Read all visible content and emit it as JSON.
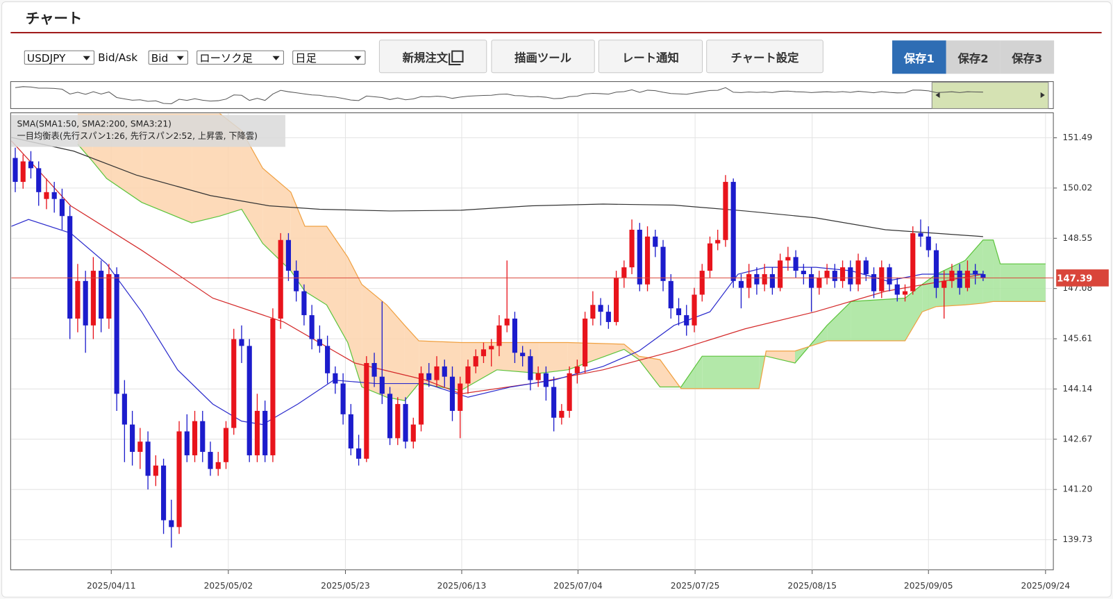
{
  "header": {
    "title": "チャート"
  },
  "toolbar": {
    "symbol": "USDJPY",
    "bid_ask_label": "Bid/Ask",
    "bid_ask": "Bid",
    "chart_kind": "ローソク足",
    "period": "日足",
    "buttons": [
      "新規注文",
      "描画ツール",
      "レート通知",
      "チャート設定"
    ],
    "saves": [
      "保存1",
      "保存2",
      "保存3"
    ]
  },
  "chart_data": {
    "type": "candlestick",
    "legend_lines": [
      "SMA(SMA1:50, SMA2:200, SMA3:21)",
      "一目均衡表(先行スパン1:26, 先行スパン2:52, 上昇雲, 下降雲)"
    ],
    "up_color": "#e8141c",
    "down_color": "#1c1ccc",
    "xlim": [
      0,
      133.5
    ],
    "ylim": [
      138.85,
      152.2
    ],
    "grid": true,
    "xticks": [
      {
        "value": 12.8,
        "label": "2025/04/11"
      },
      {
        "value": 27.8,
        "label": "2025/05/02"
      },
      {
        "value": 42.8,
        "label": "2025/05/23"
      },
      {
        "value": 57.7,
        "label": "2025/06/13"
      },
      {
        "value": 72.6,
        "label": "2025/07/04"
      },
      {
        "value": 87.6,
        "label": "2025/07/25"
      },
      {
        "value": 102.6,
        "label": "2025/08/15"
      },
      {
        "value": 117.5,
        "label": "2025/09/05"
      },
      {
        "value": 132.5,
        "label": "2025/09/24"
      }
    ],
    "yticks": [
      151.49,
      150.02,
      148.55,
      147.08,
      145.61,
      144.14,
      142.67,
      {
        "value": 141.2,
        "label": "141.20"
      },
      139.73
    ],
    "last": 147.39,
    "last_color": "#d9453a",
    "ohlc": [
      [
        150.9,
        151.2,
        149.9,
        150.2
      ],
      [
        150.2,
        151.0,
        150.0,
        150.8
      ],
      [
        150.8,
        151.1,
        150.3,
        150.6
      ],
      [
        150.6,
        150.8,
        149.5,
        149.9
      ],
      [
        149.7,
        150.3,
        149.4,
        149.9
      ],
      [
        149.9,
        150.2,
        149.3,
        149.7
      ],
      [
        149.7,
        150.0,
        148.8,
        149.2
      ],
      [
        149.2,
        149.5,
        145.6,
        146.2
      ],
      [
        146.2,
        147.8,
        145.8,
        147.3
      ],
      [
        147.3,
        147.6,
        145.2,
        146.0
      ],
      [
        146.0,
        148.0,
        145.6,
        147.6
      ],
      [
        147.6,
        147.9,
        145.8,
        146.2
      ],
      [
        146.2,
        147.8,
        145.9,
        147.5
      ],
      [
        147.5,
        147.7,
        143.5,
        144.0
      ],
      [
        144.0,
        144.4,
        142.0,
        143.1
      ],
      [
        143.1,
        143.5,
        141.9,
        142.3
      ],
      [
        142.3,
        143.0,
        141.8,
        142.6
      ],
      [
        142.6,
        142.9,
        141.2,
        141.6
      ],
      [
        141.6,
        142.2,
        141.3,
        141.9
      ],
      [
        141.9,
        142.1,
        139.9,
        140.3
      ],
      [
        140.3,
        140.9,
        139.5,
        140.1
      ],
      [
        140.1,
        143.2,
        139.9,
        142.9
      ],
      [
        142.9,
        143.4,
        142.0,
        142.2
      ],
      [
        142.2,
        143.5,
        142.0,
        143.2
      ],
      [
        143.2,
        143.5,
        142.0,
        142.3
      ],
      [
        142.3,
        142.6,
        141.6,
        141.8
      ],
      [
        141.8,
        142.3,
        141.6,
        142.0
      ],
      [
        142.0,
        143.2,
        141.8,
        143.0
      ],
      [
        143.0,
        145.9,
        142.8,
        145.6
      ],
      [
        145.6,
        146.0,
        144.9,
        145.4
      ],
      [
        145.4,
        145.6,
        142.0,
        142.2
      ],
      [
        142.2,
        144.0,
        142.0,
        143.5
      ],
      [
        143.5,
        143.8,
        142.0,
        142.2
      ],
      [
        142.2,
        146.5,
        142.0,
        146.2
      ],
      [
        146.2,
        148.7,
        145.9,
        148.5
      ],
      [
        148.5,
        148.7,
        147.3,
        147.6
      ],
      [
        147.6,
        147.9,
        146.7,
        147.0
      ],
      [
        147.0,
        147.2,
        146.0,
        146.3
      ],
      [
        146.3,
        146.6,
        145.3,
        145.6
      ],
      [
        145.6,
        146.0,
        145.2,
        145.4
      ],
      [
        145.4,
        145.7,
        144.3,
        144.6
      ],
      [
        144.6,
        144.8,
        144.0,
        144.3
      ],
      [
        144.3,
        144.6,
        143.1,
        143.4
      ],
      [
        143.4,
        143.7,
        142.2,
        142.4
      ],
      [
        142.4,
        142.8,
        141.9,
        142.1
      ],
      [
        142.1,
        145.1,
        142.0,
        144.9
      ],
      [
        144.9,
        145.2,
        144.2,
        144.5
      ],
      [
        144.5,
        146.7,
        143.7,
        144.0
      ],
      [
        144.0,
        144.2,
        142.5,
        142.7
      ],
      [
        142.7,
        143.9,
        142.5,
        143.7
      ],
      [
        143.7,
        143.9,
        142.4,
        142.6
      ],
      [
        142.6,
        143.3,
        142.4,
        143.1
      ],
      [
        143.1,
        144.8,
        142.9,
        144.6
      ],
      [
        144.6,
        144.9,
        144.2,
        144.4
      ],
      [
        144.4,
        145.1,
        144.2,
        144.8
      ],
      [
        144.8,
        145.0,
        144.2,
        144.5
      ],
      [
        144.5,
        144.8,
        143.2,
        143.5
      ],
      [
        143.5,
        144.5,
        142.7,
        144.3
      ],
      [
        144.3,
        145.0,
        144.0,
        144.8
      ],
      [
        144.8,
        145.3,
        144.6,
        145.1
      ],
      [
        145.1,
        145.5,
        144.9,
        145.3
      ],
      [
        145.3,
        145.6,
        144.8,
        145.4
      ],
      [
        145.4,
        146.3,
        145.1,
        146.0
      ],
      [
        146.0,
        147.9,
        145.8,
        146.2
      ],
      [
        146.2,
        146.4,
        144.9,
        145.2
      ],
      [
        145.2,
        145.4,
        144.8,
        145.1
      ],
      [
        145.1,
        145.3,
        144.1,
        144.4
      ],
      [
        144.4,
        144.8,
        144.2,
        144.6
      ],
      [
        144.6,
        144.8,
        143.8,
        144.2
      ],
      [
        144.2,
        144.5,
        142.9,
        143.3
      ],
      [
        143.3,
        143.7,
        143.1,
        143.5
      ],
      [
        143.5,
        144.8,
        143.3,
        144.6
      ],
      [
        144.6,
        145.0,
        144.3,
        144.8
      ],
      [
        144.8,
        146.4,
        144.6,
        146.2
      ],
      [
        146.2,
        147.0,
        146.0,
        146.6
      ],
      [
        146.6,
        146.8,
        146.0,
        146.4
      ],
      [
        146.4,
        146.6,
        145.9,
        146.1
      ],
      [
        146.1,
        147.6,
        146.0,
        147.4
      ],
      [
        147.4,
        147.9,
        147.1,
        147.7
      ],
      [
        147.7,
        149.1,
        147.5,
        148.8
      ],
      [
        148.8,
        149.0,
        147.0,
        147.2
      ],
      [
        147.2,
        148.9,
        147.0,
        148.6
      ],
      [
        148.6,
        148.8,
        148.0,
        148.3
      ],
      [
        148.3,
        148.5,
        147.0,
        147.3
      ],
      [
        147.3,
        147.5,
        146.2,
        146.5
      ],
      [
        146.5,
        146.8,
        146.0,
        146.3
      ],
      [
        146.3,
        146.6,
        145.7,
        146.0
      ],
      [
        146.0,
        147.1,
        145.8,
        146.9
      ],
      [
        146.9,
        147.8,
        146.7,
        147.6
      ],
      [
        147.6,
        148.6,
        147.4,
        148.4
      ],
      [
        148.4,
        148.8,
        148.2,
        148.5
      ],
      [
        148.5,
        150.4,
        148.3,
        150.2
      ],
      [
        150.2,
        150.3,
        147.1,
        147.3
      ],
      [
        147.3,
        147.5,
        146.5,
        147.1
      ],
      [
        147.1,
        147.8,
        146.8,
        147.5
      ],
      [
        147.5,
        147.7,
        146.9,
        147.2
      ],
      [
        147.2,
        147.8,
        147.0,
        147.5
      ],
      [
        147.5,
        147.7,
        146.9,
        147.1
      ],
      [
        147.1,
        148.1,
        147.0,
        147.9
      ],
      [
        147.9,
        148.3,
        147.6,
        148.0
      ],
      [
        148.0,
        148.2,
        147.4,
        147.6
      ],
      [
        147.6,
        147.8,
        147.2,
        147.5
      ],
      [
        147.5,
        147.7,
        146.4,
        147.1
      ],
      [
        147.1,
        147.6,
        146.9,
        147.4
      ],
      [
        147.4,
        147.8,
        147.2,
        147.6
      ],
      [
        147.6,
        147.8,
        147.1,
        147.3
      ],
      [
        147.3,
        147.9,
        147.1,
        147.7
      ],
      [
        147.7,
        147.9,
        147.0,
        147.2
      ],
      [
        147.2,
        148.1,
        147.0,
        147.9
      ],
      [
        147.9,
        148.0,
        147.3,
        147.5
      ],
      [
        147.5,
        147.7,
        146.8,
        147.0
      ],
      [
        147.0,
        147.9,
        146.8,
        147.7
      ],
      [
        147.7,
        147.8,
        147.0,
        147.2
      ],
      [
        147.2,
        147.4,
        146.7,
        146.9
      ],
      [
        146.9,
        147.2,
        146.7,
        147.0
      ],
      [
        147.0,
        148.9,
        146.9,
        148.7
      ],
      [
        148.7,
        149.1,
        148.3,
        148.6
      ],
      [
        148.6,
        148.9,
        148.0,
        148.2
      ],
      [
        148.2,
        148.4,
        146.8,
        147.1
      ],
      [
        147.1,
        147.6,
        146.2,
        147.3
      ],
      [
        147.3,
        147.8,
        147.1,
        147.6
      ],
      [
        147.6,
        147.8,
        146.9,
        147.1
      ],
      [
        147.1,
        147.9,
        147.0,
        147.6
      ],
      [
        147.6,
        147.8,
        147.2,
        147.5
      ],
      [
        147.5,
        147.6,
        147.3,
        147.39
      ]
    ],
    "sma": [
      {
        "color": "#d42a2a",
        "x": [
          0,
          7.6,
          16.7,
          25.8,
          34.9,
          44,
          53.1,
          57.6,
          66.7,
          75.8,
          84.9,
          94,
          103,
          112,
          124.5
        ],
        "values": [
          151.4,
          149.5,
          148.2,
          146.8,
          146.1,
          144.9,
          144.4,
          144.0,
          144.3,
          144.7,
          145.25,
          145.9,
          146.4,
          147.0,
          147.5
        ]
      },
      {
        "color": "#333333",
        "x": [
          0,
          8,
          16,
          25.5,
          33,
          39.5,
          48.5,
          57.6,
          66.7,
          75.8,
          84.9,
          94,
          103,
          112,
          124.5
        ],
        "values": [
          151.5,
          151.1,
          150.4,
          149.8,
          149.5,
          149.4,
          149.35,
          149.37,
          149.5,
          149.55,
          149.52,
          149.35,
          149.15,
          148.8,
          148.6
        ]
      },
      {
        "color": "#2a2acc",
        "x": [
          0,
          2.2,
          7.6,
          12.2,
          16.7,
          21.3,
          25.8,
          29.5,
          32.2,
          36.7,
          41.3,
          46.7,
          53.1,
          58.5,
          64,
          69.5,
          75.8,
          80.4,
          84.9,
          89.5,
          93.1,
          96.7,
          103.1,
          107.6,
          112.2,
          116.7,
          124.5
        ],
        "values": [
          148.9,
          149.1,
          148.7,
          147.8,
          146.4,
          144.7,
          143.7,
          143.2,
          143.1,
          143.7,
          144.4,
          144.3,
          144.3,
          143.9,
          144.2,
          144.4,
          144.8,
          145.25,
          146.0,
          146.4,
          147.5,
          147.7,
          147.7,
          147.6,
          147.3,
          147.5,
          147.5
        ]
      }
    ],
    "ichimoku": {
      "span1_color": "#5cc43c",
      "span2_color": "#f0a040",
      "bull_fill": "#a6e49a",
      "bear_fill": "#fdd3ad",
      "x": [
        8.5,
        10.4,
        12.2,
        16.7,
        23.1,
        26.7,
        29.5,
        32.2,
        35.8,
        37.6,
        40.4,
        43.1,
        44.9,
        48.1,
        50.4,
        52.2,
        57.6,
        62.2,
        67.6,
        71.3,
        78.5,
        80.4,
        83.1,
        85.8,
        88.5,
        95.8,
        96.7,
        100.4,
        104.5,
        107.6,
        114.5,
        116.7,
        118.5,
        122.2,
        124.5,
        125.8,
        126.7,
        132.5
      ],
      "span1": [
        151.3,
        150.8,
        150.3,
        149.6,
        149.0,
        149.2,
        149.4,
        148.4,
        147.6,
        147.0,
        146.6,
        145.5,
        144.2,
        143.9,
        143.8,
        144.3,
        144.1,
        144.7,
        144.6,
        144.7,
        145.3,
        145.0,
        144.2,
        144.2,
        145.1,
        145.1,
        145.1,
        144.9,
        146.0,
        146.7,
        146.8,
        147.2,
        147.5,
        147.9,
        148.5,
        148.5,
        147.8,
        147.8
      ],
      "span2": [
        153.0,
        153.0,
        153.0,
        153.0,
        153.0,
        152.2,
        151.7,
        150.6,
        149.9,
        148.9,
        148.9,
        148.0,
        147.2,
        146.6,
        146.0,
        145.55,
        145.5,
        145.5,
        145.5,
        145.5,
        145.45,
        145.1,
        145.0,
        144.15,
        144.15,
        144.15,
        145.25,
        145.25,
        145.55,
        145.55,
        145.55,
        146.4,
        146.55,
        146.6,
        146.65,
        146.7,
        146.7,
        146.7
      ]
    }
  }
}
